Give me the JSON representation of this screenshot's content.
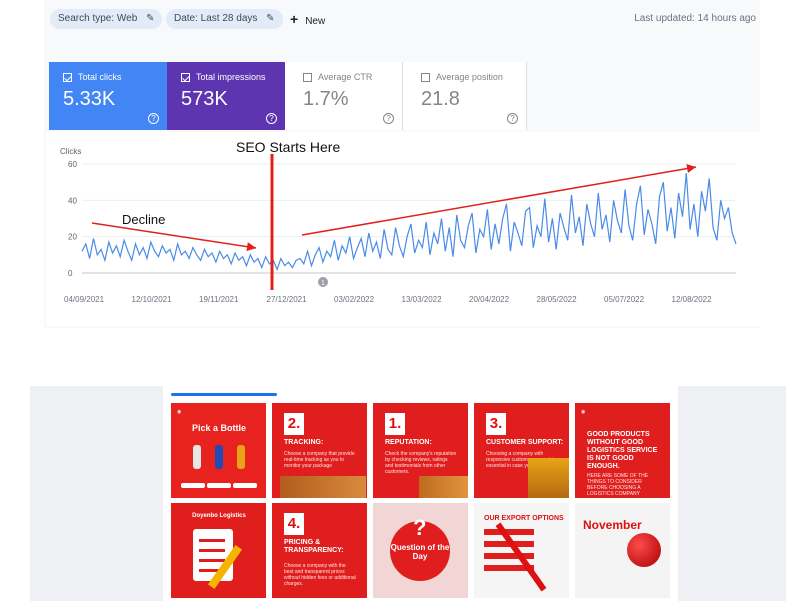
{
  "filters": {
    "search_type": "Search type: Web",
    "date": "Date: Last 28 days",
    "new_label": "New",
    "last_updated": "Last updated: 14 hours ago"
  },
  "metrics": {
    "clicks": {
      "label": "Total clicks",
      "value": "5.33K",
      "checked": true
    },
    "impressions": {
      "label": "Total impressions",
      "value": "573K",
      "checked": true
    },
    "ctr": {
      "label": "Average CTR",
      "value": "1.7%",
      "checked": false
    },
    "position": {
      "label": "Average position",
      "value": "21.8",
      "checked": false
    }
  },
  "colors": {
    "clicks": "#4285f4",
    "impressions": "#5e35b1",
    "line": "#4a8be8",
    "annotation": "#e0201c"
  },
  "chart_data": {
    "type": "line",
    "ylabel": "Clicks",
    "ylim": [
      0,
      60
    ],
    "yticks": [
      "0",
      "20",
      "40",
      "60"
    ],
    "x_tick_labels": [
      "04/09/2021",
      "12/10/2021",
      "19/11/2021",
      "27/12/2021",
      "03/02/2022",
      "13/03/2022",
      "20/04/2022",
      "28/05/2022",
      "05/07/2022",
      "12/08/2022"
    ],
    "annotations": {
      "decline": "Decline",
      "seo_start": "SEO Starts Here"
    },
    "series": [
      {
        "values": [
          12,
          16,
          8,
          19,
          10,
          13,
          7,
          17,
          11,
          15,
          9,
          18,
          12,
          7,
          16,
          10,
          14,
          8,
          17,
          12,
          9,
          15,
          11,
          13,
          7,
          16,
          10,
          12,
          8,
          14,
          10,
          7,
          13,
          9,
          11,
          6,
          12,
          8,
          10,
          5,
          11,
          7,
          9,
          4,
          10,
          6,
          8,
          3,
          9,
          5,
          7,
          2,
          8,
          4,
          6,
          3,
          7,
          8,
          5,
          12,
          4,
          10,
          14,
          6,
          12,
          9,
          18,
          7,
          15,
          11,
          20,
          8,
          14,
          19,
          9,
          22,
          12,
          17,
          8,
          24,
          13,
          10,
          25,
          15,
          9,
          20,
          27,
          11,
          18,
          14,
          28,
          10,
          22,
          16,
          30,
          12,
          25,
          9,
          32,
          18,
          14,
          26,
          33,
          11,
          24,
          20,
          35,
          13,
          27,
          16,
          30,
          38,
          12,
          28,
          22,
          15,
          34,
          36,
          14,
          26,
          20,
          41,
          17,
          30,
          13,
          33,
          25,
          18,
          43,
          22,
          31,
          15,
          38,
          27,
          20,
          44,
          24,
          32,
          17,
          40,
          29,
          22,
          46,
          26,
          18,
          38,
          48,
          21,
          35,
          27,
          16,
          42,
          50,
          23,
          36,
          19,
          44,
          31,
          55,
          24,
          38,
          20,
          45,
          34,
          52,
          25,
          18,
          40,
          30,
          36,
          22,
          16
        ]
      }
    ]
  },
  "portfolio": {
    "tiles": [
      {
        "title": "Pick a Bottle"
      },
      {
        "num": "2.",
        "head": "TRACKING:",
        "body": "Choose a company that provide real-time tracking as you to monitor your package"
      },
      {
        "num": "1.",
        "head": "REPUTATION:",
        "body": "Check the company's reputation by checking reviews, ratings and testimonials from other customers."
      },
      {
        "num": "3.",
        "head": "CUSTOMER SUPPORT:",
        "body": "Choosing a company with responsive customer support is essential in case you need help."
      },
      {
        "head": "GOOD PRODUCTS WITHOUT GOOD LOGISTICS SERVICE IS NOT GOOD ENOUGH.",
        "body": "HERE ARE SOME OF THE THINGS TO CONSIDER BEFORE CHOOSING A LOGISTICS COMPANY"
      },
      {
        "title": "Doyenbo Logistics"
      },
      {
        "num": "4.",
        "head": "PRICING & TRANSPARENCY:",
        "body": "Choose a company with the best and transparent prices without hidden fees or additional charges."
      },
      {
        "title": "Question of the Day"
      },
      {
        "title": "OUR EXPORT OPTIONS"
      },
      {
        "title": "November"
      }
    ]
  }
}
